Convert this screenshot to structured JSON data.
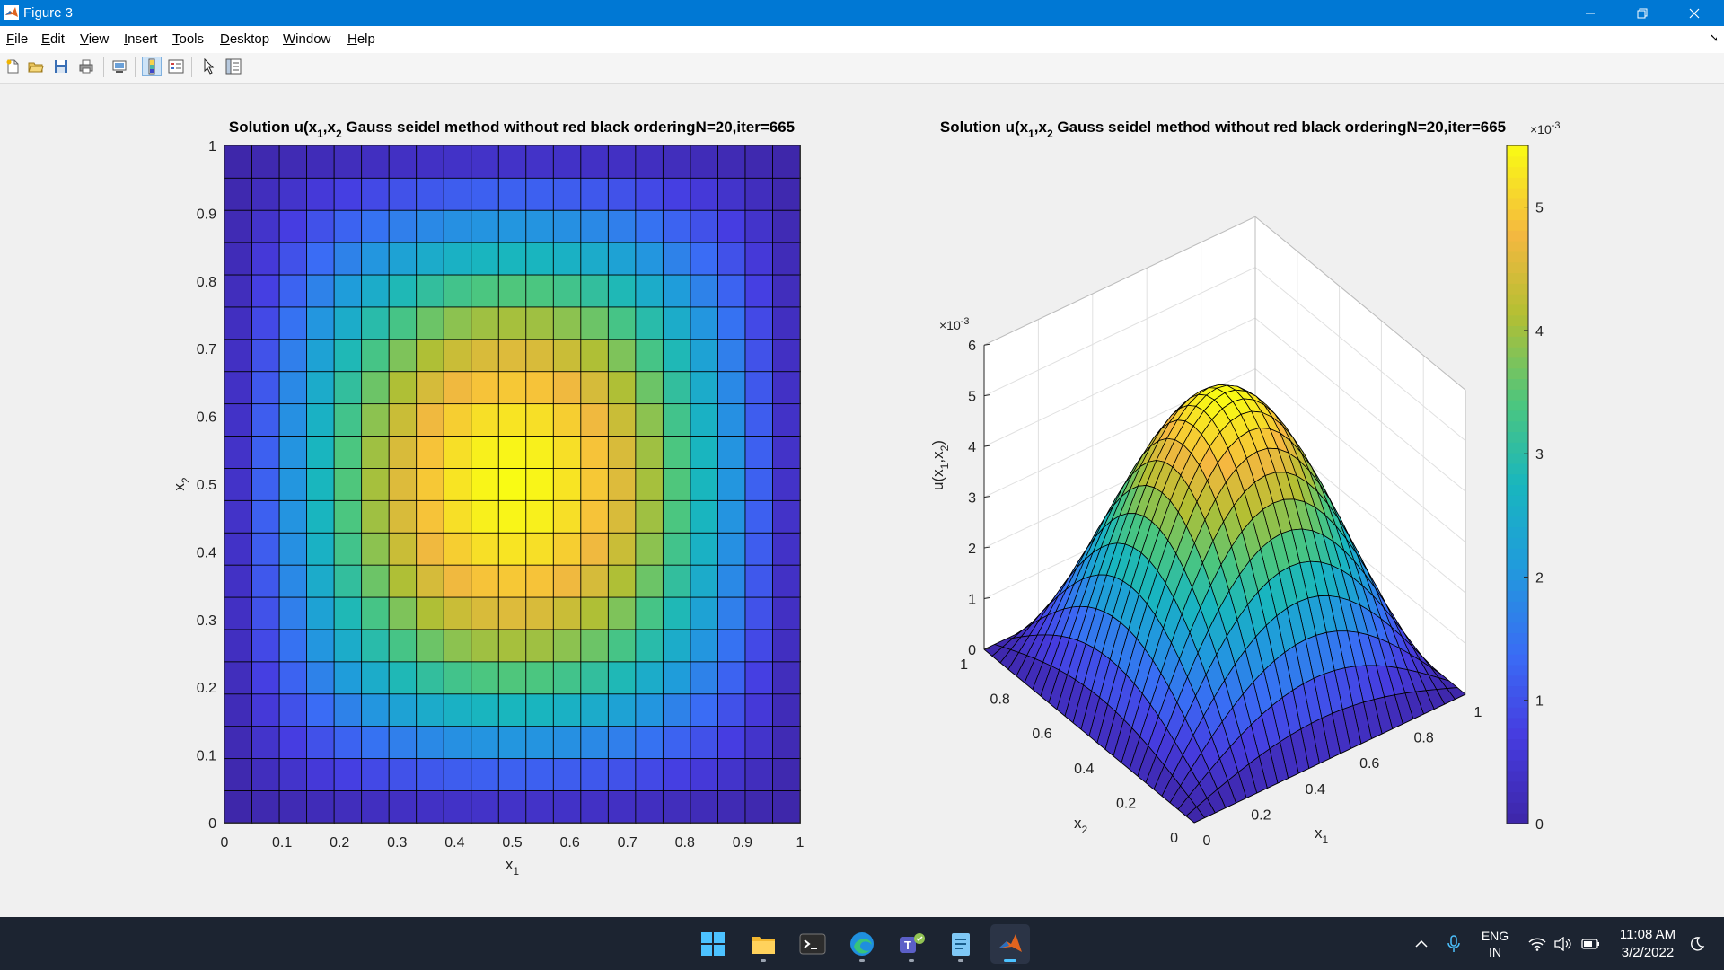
{
  "window": {
    "title": "Figure 3"
  },
  "menu": [
    {
      "pre": "",
      "ul": "F",
      "post": "ile"
    },
    {
      "pre": "",
      "ul": "E",
      "post": "dit"
    },
    {
      "pre": "",
      "ul": "V",
      "post": "iew"
    },
    {
      "pre": "",
      "ul": "I",
      "post": "nsert"
    },
    {
      "pre": "",
      "ul": "T",
      "post": "ools"
    },
    {
      "pre": "",
      "ul": "D",
      "post": "esktop"
    },
    {
      "pre": "",
      "ul": "W",
      "post": "indow"
    },
    {
      "pre": "",
      "ul": "H",
      "post": "elp"
    }
  ],
  "toolbar_icons": [
    "new-figure-icon",
    "open-file-icon",
    "save-icon",
    "print-icon",
    "link-plot-icon",
    "insert-colorbar-icon",
    "insert-legend-icon",
    "edit-plot-icon",
    "property-inspector-icon"
  ],
  "chart_data": [
    {
      "type": "heatmap",
      "title": "Solution u(x_1,x_2) Gauss seidel method without red black orderingN=20,iter=665",
      "xlabel": "x_1",
      "ylabel": "x_2",
      "xlim": [
        0,
        1
      ],
      "ylim": [
        0,
        1
      ],
      "xticks": [
        "0",
        "0.1",
        "0.2",
        "0.3",
        "0.4",
        "0.5",
        "0.6",
        "0.7",
        "0.8",
        "0.9",
        "1"
      ],
      "yticks": [
        "0",
        "0.1",
        "0.2",
        "0.3",
        "0.4",
        "0.5",
        "0.6",
        "0.7",
        "0.8",
        "0.9",
        "1"
      ],
      "grid_n": 21,
      "value_function": "u = 0.0055*sin(pi*x1)*sin(pi*x2)",
      "vmax": 0.0055,
      "colormap": "parula"
    },
    {
      "type": "surface",
      "title": "Solution u(x_1,x_2) Gauss seidel method without red black orderingN=20,iter=665",
      "xlabel": "x_1",
      "ylabel": "x_2",
      "zlabel": "u(x_1,x_2)",
      "xticks": [
        "0",
        "0.2",
        "0.4",
        "0.6",
        "0.8",
        "1"
      ],
      "yticks": [
        "0",
        "0.2",
        "0.4",
        "0.6",
        "0.8",
        "1"
      ],
      "zticks": [
        "0",
        "1",
        "2",
        "3",
        "4",
        "5",
        "6"
      ],
      "z_exponent": "×10^-3",
      "zlim": [
        0,
        0.006
      ],
      "peak": 0.0055
    }
  ],
  "colorbar": {
    "ticks": [
      "0",
      "1",
      "2",
      "3",
      "4",
      "5"
    ],
    "exponent": "×10^-3",
    "range": [
      0,
      0.0055
    ]
  },
  "taskbar": {
    "apps": [
      "start-icon",
      "file-explorer-icon",
      "terminal-icon",
      "edge-icon",
      "teams-icon",
      "notepad-icon",
      "matlab-icon"
    ],
    "lang_top": "ENG",
    "lang_bottom": "IN",
    "time": "11:08 AM",
    "date": "3/2/2022"
  },
  "colors": {
    "titlebar": "#0078d4",
    "taskbar": "#1c2431"
  }
}
